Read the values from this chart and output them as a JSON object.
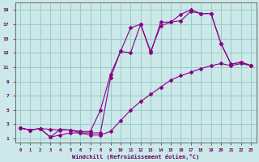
{
  "xlabel": "Windchill (Refroidissement éolien,°C)",
  "bg_color": "#cce8e8",
  "grid_color": "#99cccc",
  "line_color": "#880088",
  "xlim": [
    -0.5,
    23.5
  ],
  "ylim": [
    0.5,
    20
  ],
  "xticks": [
    0,
    1,
    2,
    3,
    4,
    5,
    6,
    7,
    8,
    9,
    10,
    11,
    12,
    13,
    14,
    15,
    16,
    17,
    18,
    19,
    20,
    21,
    22,
    23
  ],
  "yticks": [
    1,
    3,
    5,
    7,
    9,
    11,
    13,
    15,
    17,
    19
  ],
  "curve1_x": [
    0,
    1,
    2,
    3,
    4,
    5,
    6,
    7,
    8,
    9,
    10,
    11,
    12,
    13,
    14,
    15,
    16,
    17,
    18,
    19,
    20,
    21,
    22,
    23
  ],
  "curve1_y": [
    2.5,
    2.2,
    2.4,
    2.3,
    2.2,
    2.2,
    2.0,
    2.0,
    5.0,
    10.0,
    13.2,
    16.5,
    17.0,
    13.0,
    17.3,
    17.3,
    17.5,
    18.8,
    18.5,
    18.5,
    14.3,
    11.4,
    11.7,
    11.2
  ],
  "curve2_x": [
    0,
    1,
    2,
    3,
    4,
    5,
    6,
    7,
    8,
    9,
    10,
    11,
    12,
    13,
    14,
    15,
    16,
    17,
    18,
    19,
    20,
    21,
    22,
    23
  ],
  "curve2_y": [
    2.5,
    2.2,
    2.4,
    1.2,
    2.3,
    2.2,
    1.8,
    1.8,
    1.8,
    9.5,
    13.2,
    13.0,
    17.0,
    13.2,
    16.8,
    17.3,
    18.4,
    19.0,
    18.5,
    18.5,
    14.3,
    11.4,
    11.7,
    11.2
  ],
  "curve3_x": [
    0,
    1,
    2,
    3,
    4,
    5,
    6,
    7,
    8,
    9,
    10,
    11,
    12,
    13,
    14,
    15,
    16,
    17,
    18,
    19,
    20,
    21,
    22,
    23
  ],
  "curve3_y": [
    2.5,
    2.2,
    2.4,
    1.2,
    1.5,
    1.8,
    1.8,
    1.5,
    1.5,
    2.0,
    3.5,
    5.0,
    6.2,
    7.2,
    8.2,
    9.2,
    9.8,
    10.3,
    10.8,
    11.2,
    11.5,
    11.2,
    11.5,
    11.2
  ]
}
